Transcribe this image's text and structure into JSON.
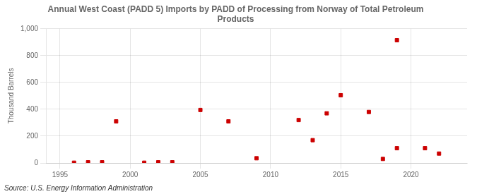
{
  "chart_data": {
    "type": "scatter",
    "title": "Annual West Coast (PADD 5) Imports by PADD of Processing from Norway of Total Petroleum\nProducts",
    "ylabel": "Thousand Barrels",
    "source": "Source: U.S. Energy Information Administration",
    "x": [
      1996,
      1997,
      1998,
      1999,
      2001,
      2002,
      2003,
      2005,
      2007,
      2009,
      2012,
      2013,
      2014,
      2015,
      2017,
      2018,
      2019,
      2019,
      2021,
      2022
    ],
    "values": [
      2,
      5,
      5,
      310,
      2,
      5,
      5,
      395,
      310,
      35,
      320,
      170,
      370,
      505,
      380,
      30,
      110,
      915,
      110,
      70
    ],
    "color": "#cc0000",
    "marker": "square",
    "xlim": [
      1994,
      2024
    ],
    "ylim": [
      0,
      1000
    ],
    "xticks": [
      1995,
      2000,
      2005,
      2010,
      2015,
      2020
    ],
    "yticks": [
      0,
      200,
      400,
      600,
      800,
      {
        "value": 1000,
        "label": "1,000"
      }
    ],
    "grid": true
  }
}
